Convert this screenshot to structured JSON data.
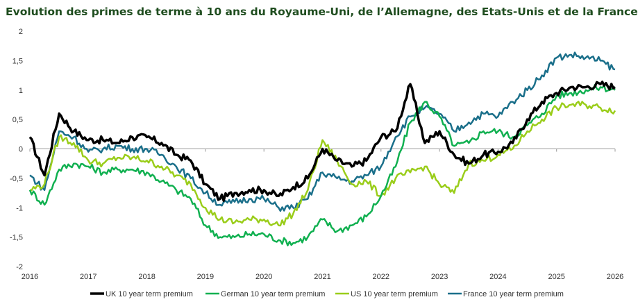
{
  "chart_data": {
    "type": "line",
    "title": "Evolution des primes de terme à 10 ans du Royaume-Uni, de l’Allemagne, des Etats-Unis et de la France",
    "xlabel": "",
    "ylabel": "",
    "xlim": [
      2016,
      2026
    ],
    "ylim": [
      -2,
      2
    ],
    "x_ticks": [
      "2016",
      "2017",
      "2018",
      "2019",
      "2020",
      "2021",
      "2022",
      "2023",
      "2024",
      "2025",
      "2026"
    ],
    "y_ticks": [
      "2",
      "1,5",
      "1",
      "0,5",
      "0",
      "-0,5",
      "-1",
      "-1,5",
      "-2"
    ],
    "grid": false,
    "legend": "bottom",
    "x": [
      2016.0,
      2016.25,
      2016.5,
      2016.75,
      2017.0,
      2017.25,
      2017.5,
      2017.75,
      2018.0,
      2018.25,
      2018.5,
      2018.75,
      2019.0,
      2019.25,
      2019.5,
      2019.75,
      2020.0,
      2020.25,
      2020.5,
      2020.75,
      2021.0,
      2021.25,
      2021.5,
      2021.75,
      2022.0,
      2022.25,
      2022.5,
      2022.75,
      2023.0,
      2023.25,
      2023.5,
      2023.75,
      2024.0,
      2024.25,
      2024.5,
      2024.75,
      2025.0,
      2025.25,
      2025.5,
      2025.75,
      2026.0
    ],
    "series": [
      {
        "name": "UK 10 year term premium",
        "color": "#000000",
        "width": 3.5,
        "values": [
          0.2,
          -0.45,
          0.6,
          0.3,
          0.15,
          0.15,
          0.1,
          0.2,
          0.2,
          0.1,
          -0.1,
          -0.2,
          -0.6,
          -0.85,
          -0.75,
          -0.7,
          -0.7,
          -0.8,
          -0.65,
          -0.5,
          0.0,
          -0.2,
          -0.3,
          -0.2,
          0.2,
          0.3,
          1.1,
          0.1,
          0.3,
          -0.1,
          -0.25,
          -0.1,
          -0.05,
          0.1,
          0.5,
          0.8,
          0.95,
          1.05,
          1.05,
          1.1,
          1.05
        ]
      },
      {
        "name": "German 10 year term premium",
        "color": "#10b050",
        "width": 2.5,
        "values": [
          -0.7,
          -0.95,
          -0.35,
          -0.25,
          -0.3,
          -0.4,
          -0.35,
          -0.35,
          -0.4,
          -0.55,
          -0.7,
          -0.85,
          -1.3,
          -1.5,
          -1.5,
          -1.45,
          -1.45,
          -1.55,
          -1.6,
          -1.5,
          -1.2,
          -1.4,
          -1.3,
          -1.15,
          -0.8,
          -0.3,
          0.45,
          0.8,
          0.55,
          0.05,
          0.1,
          0.3,
          0.3,
          0.2,
          0.4,
          0.6,
          0.9,
          0.95,
          1.0,
          1.05,
          1.0
        ]
      },
      {
        "name": "US 10 year term premium",
        "color": "#9acd1a",
        "width": 2.5,
        "values": [
          -0.7,
          -0.6,
          0.2,
          0.1,
          -0.2,
          -0.25,
          -0.15,
          -0.15,
          -0.2,
          -0.3,
          -0.45,
          -0.6,
          -1.0,
          -1.2,
          -1.25,
          -1.2,
          -1.2,
          -1.3,
          -1.1,
          -0.7,
          0.15,
          -0.2,
          -0.6,
          -0.55,
          -0.8,
          -0.5,
          -0.4,
          -0.3,
          -0.6,
          -0.75,
          -0.25,
          -0.2,
          -0.1,
          0.0,
          0.3,
          0.5,
          0.7,
          0.75,
          0.75,
          0.7,
          0.65
        ]
      },
      {
        "name": "France 10 year term premium",
        "color": "#1a6f8a",
        "width": 2.5,
        "values": [
          -0.45,
          -0.7,
          0.3,
          0.2,
          -0.05,
          0.0,
          0.05,
          0.0,
          0.0,
          -0.1,
          -0.3,
          -0.5,
          -0.75,
          -0.95,
          -0.9,
          -0.85,
          -0.85,
          -1.0,
          -1.0,
          -0.85,
          -0.4,
          -0.5,
          -0.55,
          -0.45,
          -0.3,
          0.2,
          0.55,
          0.7,
          0.6,
          0.3,
          0.45,
          0.6,
          0.55,
          0.8,
          1.0,
          1.25,
          1.55,
          1.6,
          1.55,
          1.5,
          1.35
        ]
      }
    ]
  }
}
